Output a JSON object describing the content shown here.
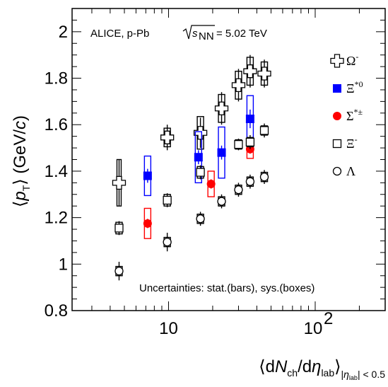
{
  "chart_data": {
    "type": "scatter",
    "title": "",
    "annotations": {
      "system": "ALICE, p-Pb",
      "energy_sqrt": "s",
      "energy_sub": "NN",
      "energy_value": "= 5.02 TeV",
      "uncertainties": "Uncertainties: stat.(bars), sys.(boxes)"
    },
    "xaxis": {
      "scale": "log",
      "range": [
        2.2,
        300
      ],
      "tick_labels": [
        "10",
        "10"
      ],
      "tick_label_exponent": "2",
      "title_parts": {
        "open": "⟨d",
        "N": "N",
        "ch": "ch",
        "slash": "/d",
        "eta": "η",
        "lab": "lab",
        "close": "⟩",
        "sub_pre": "|",
        "sub_eta": "η",
        "sub_lab": "lab",
        "sub_post": "| < 0.5"
      }
    },
    "yaxis": {
      "scale": "linear",
      "range": [
        0.8,
        2.1
      ],
      "tick_labels": [
        "0.8",
        "1",
        "1.2",
        "1.4",
        "1.6",
        "1.8",
        "2"
      ],
      "title_parts": {
        "open": "⟨",
        "p": "p",
        "T": "T",
        "close": "⟩ (GeV/",
        "c": "c",
        "end": ")"
      }
    },
    "grid": false,
    "legend_position": "top-right",
    "series": [
      {
        "name": "Ω",
        "name_sup": "-",
        "marker": "open-cross",
        "color": "#000000",
        "x": [
          4.6,
          9.8,
          16.5,
          23.0,
          30.0,
          36.0,
          45.0
        ],
        "y": [
          1.35,
          1.545,
          1.565,
          1.67,
          1.77,
          1.83,
          1.82
        ],
        "stat": [
          0.1,
          0.055,
          0.065,
          0.07,
          0.07,
          0.07,
          0.06
        ],
        "sys": [
          0.1,
          0.04,
          0.07,
          0.06,
          0.06,
          0.06,
          0.05
        ]
      },
      {
        "name": "Ξ",
        "name_sup": "*0",
        "marker": "filled-square",
        "color": "#0000ff",
        "x": [
          7.2,
          16.0,
          23.0,
          36.0
        ],
        "y": [
          1.38,
          1.46,
          1.48,
          1.625
        ],
        "stat": [
          0.03,
          0.03,
          0.03,
          0.04
        ],
        "sys": [
          0.085,
          0.11,
          0.11,
          0.1
        ]
      },
      {
        "name": "Σ",
        "name_sup": "*±",
        "marker": "filled-circle",
        "color": "#ff0000",
        "x": [
          7.2,
          19.5,
          36.0
        ],
        "y": [
          1.175,
          1.345,
          1.495
        ],
        "stat": [
          0.02,
          0.02,
          0.02
        ],
        "sys": [
          0.065,
          0.055,
          0.04
        ]
      },
      {
        "name": "Ξ",
        "name_sup": "-",
        "marker": "open-square",
        "color": "#000000",
        "x": [
          4.6,
          9.8,
          16.5,
          30.0,
          36.0,
          45.0
        ],
        "y": [
          1.155,
          1.275,
          1.395,
          1.515,
          1.525,
          1.575
        ],
        "stat": [
          0.03,
          0.03,
          0.03,
          0.025,
          0.03,
          0.03
        ],
        "sys": [
          0.025,
          0.025,
          0.025,
          0.02,
          0.02,
          0.02
        ]
      },
      {
        "name": "Λ",
        "name_sup": "",
        "marker": "open-circle",
        "color": "#000000",
        "x": [
          4.6,
          9.8,
          16.5,
          23.0,
          30.0,
          36.0,
          45.0
        ],
        "y": [
          0.97,
          1.095,
          1.195,
          1.27,
          1.32,
          1.355,
          1.375
        ],
        "stat": [
          0.04,
          0.04,
          0.03,
          0.03,
          0.03,
          0.03,
          0.03
        ],
        "sys": [
          0.02,
          0.02,
          0.02,
          0.02,
          0.02,
          0.02,
          0.02
        ]
      }
    ]
  }
}
